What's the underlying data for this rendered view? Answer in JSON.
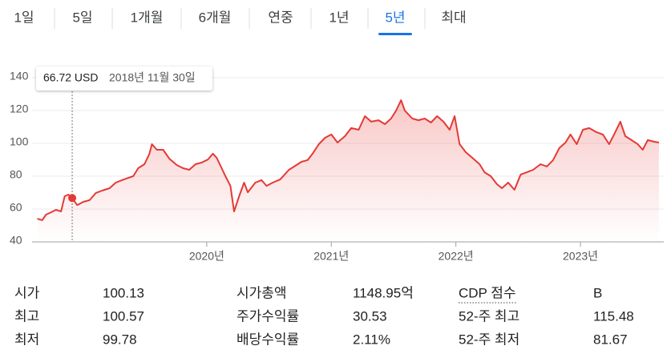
{
  "tabs": {
    "items": [
      "1일",
      "5일",
      "1개월",
      "6개월",
      "연중",
      "1년",
      "5년",
      "최대"
    ],
    "active": "5년"
  },
  "chart_data": {
    "type": "line",
    "color": "#e53935",
    "x": [
      2018.64,
      2018.68,
      2018.71,
      2018.75,
      2018.79,
      2018.83,
      2018.86,
      2018.89,
      2018.92,
      2018.96,
      2019.01,
      2019.06,
      2019.11,
      2019.16,
      2019.22,
      2019.27,
      2019.32,
      2019.37,
      2019.41,
      2019.45,
      2019.5,
      2019.54,
      2019.56,
      2019.6,
      2019.65,
      2019.7,
      2019.76,
      2019.81,
      2019.86,
      2019.91,
      2019.96,
      2020.01,
      2020.05,
      2020.08,
      2020.12,
      2020.15,
      2020.19,
      2020.22,
      2020.26,
      2020.3,
      2020.33,
      2020.39,
      2020.44,
      2020.48,
      2020.53,
      2020.59,
      2020.66,
      2020.71,
      2020.76,
      2020.81,
      2020.85,
      2020.9,
      2020.95,
      2021.0,
      2021.05,
      2021.11,
      2021.16,
      2021.22,
      2021.27,
      2021.32,
      2021.38,
      2021.43,
      2021.48,
      2021.52,
      2021.56,
      2021.59,
      2021.65,
      2021.7,
      2021.75,
      2021.8,
      2021.85,
      2021.9,
      2021.95,
      2021.99,
      2022.03,
      2022.08,
      2022.14,
      2022.19,
      2022.23,
      2022.28,
      2022.33,
      2022.37,
      2022.42,
      2022.47,
      2022.52,
      2022.57,
      2022.62,
      2022.68,
      2022.73,
      2022.78,
      2022.83,
      2022.88,
      2022.92,
      2022.97,
      2023.02,
      2023.07,
      2023.13,
      2023.18,
      2023.23,
      2023.27,
      2023.32,
      2023.36,
      2023.41,
      2023.46,
      2023.5,
      2023.54,
      2023.59,
      2023.63
    ],
    "values": [
      54.1,
      53.2,
      56.6,
      58,
      59.5,
      58.5,
      67.8,
      68.8,
      66.72,
      62.4,
      64.4,
      65.4,
      69.8,
      71.2,
      72.7,
      76.1,
      77.6,
      79,
      80,
      84.9,
      87.3,
      93.7,
      99.5,
      96.1,
      96.1,
      90.7,
      86.8,
      84.9,
      83.9,
      87.3,
      88.3,
      90.2,
      93.7,
      91.2,
      84.9,
      80,
      74.1,
      58.5,
      67.8,
      76.1,
      70.2,
      76.1,
      77.6,
      74.1,
      76.1,
      78,
      83.9,
      86.3,
      88.8,
      89.8,
      93.7,
      99.5,
      103.4,
      105.4,
      100.5,
      104.4,
      109.3,
      108.3,
      116.6,
      113.2,
      114.1,
      111.7,
      115.1,
      120,
      126.3,
      120,
      115.1,
      114.1,
      115.1,
      112.7,
      116.6,
      113.2,
      108.3,
      116.6,
      99.5,
      94.6,
      90.7,
      87.3,
      82.4,
      80,
      75.1,
      72.7,
      76.1,
      71.7,
      81,
      82.4,
      83.9,
      87.3,
      85.9,
      89.8,
      97.1,
      100.5,
      105.4,
      99.5,
      108.3,
      109.3,
      106.8,
      105.4,
      99.5,
      105.4,
      113.2,
      104.4,
      102,
      99.5,
      96.1,
      102,
      101,
      100.5
    ],
    "xlim": [
      2018.598,
      2023.669
    ],
    "xticks": [
      {
        "value": 2020,
        "label": "2020년"
      },
      {
        "value": 2021,
        "label": "2021년"
      },
      {
        "value": 2022,
        "label": "2022년"
      },
      {
        "value": 2023,
        "label": "2023년"
      }
    ],
    "ylim": [
      40,
      140
    ],
    "yticks": [
      40,
      60,
      80,
      100,
      120,
      140
    ],
    "grid": true,
    "highlight": {
      "x": 2018.92,
      "value": 66.72,
      "label": "66.72 USD",
      "date": "2018년 11월 30일"
    }
  },
  "stats": {
    "rows": [
      [
        "시가",
        "100.13",
        "시가총액",
        "1148.95억",
        "CDP 점수",
        "B"
      ],
      [
        "최고",
        "100.57",
        "주가수익률",
        "30.53",
        "52-주 최고",
        "115.48"
      ],
      [
        "최저",
        "99.78",
        "배당수익률",
        "2.11%",
        "52-주 최저",
        "81.67"
      ]
    ]
  }
}
